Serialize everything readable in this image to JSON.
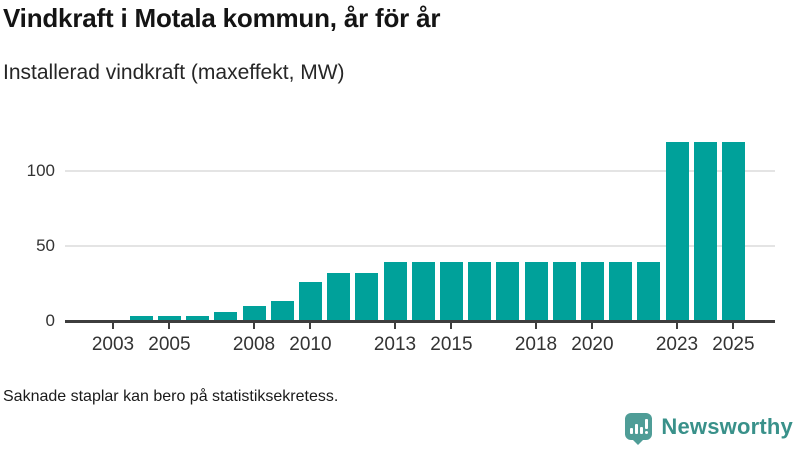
{
  "header": {
    "title": "Vindkraft i Motala kommun, år för år",
    "subtitle": "Installerad vindkraft (maxeffekt, MW)"
  },
  "chart_data": {
    "type": "bar",
    "title": "Vindkraft i Motala kommun, år för år",
    "subtitle": "Installerad vindkraft (maxeffekt, MW)",
    "ylabel": "Installerad vindkraft (maxeffekt, MW)",
    "xlabel": "",
    "unit": "MW",
    "x": [
      2003,
      2004,
      2005,
      2006,
      2007,
      2008,
      2009,
      2010,
      2011,
      2012,
      2013,
      2014,
      2015,
      2016,
      2017,
      2018,
      2019,
      2020,
      2021,
      2022,
      2023,
      2024,
      2025
    ],
    "values": [
      null,
      3,
      3,
      3,
      6,
      10,
      13,
      26,
      32,
      32,
      39,
      39,
      39,
      39,
      39,
      39,
      39,
      39,
      39,
      39,
      119,
      119,
      119
    ],
    "x_tick_years": [
      2003,
      2005,
      2008,
      2010,
      2013,
      2015,
      2018,
      2020,
      2023,
      2025
    ],
    "x_tick_labels": [
      "2003",
      "2005",
      "2008",
      "2010",
      "2013",
      "2015",
      "2018",
      "2020",
      "2023",
      "2025"
    ],
    "y_ticks": [
      0,
      50,
      100
    ],
    "y_tick_labels": [
      "0",
      "50",
      "100"
    ],
    "ylim": [
      0,
      127
    ],
    "grid": "horizontal",
    "legend": "none",
    "missing_bars_note": "Saknade staplar kan bero på statistiksekretess."
  },
  "footer": {
    "note": "Saknade staplar kan bero på statistiksekretess.",
    "brand": {
      "name": "Newsworthy",
      "logo_icon": "bar-chart-speech-bubble-icon"
    }
  },
  "colors": {
    "bar_teal": "#00a19a",
    "gridline": "#e4e4e4",
    "axis": "#3d3d3d",
    "logo_teal": "#4f9d97",
    "brand_text_teal": "#39918a"
  }
}
